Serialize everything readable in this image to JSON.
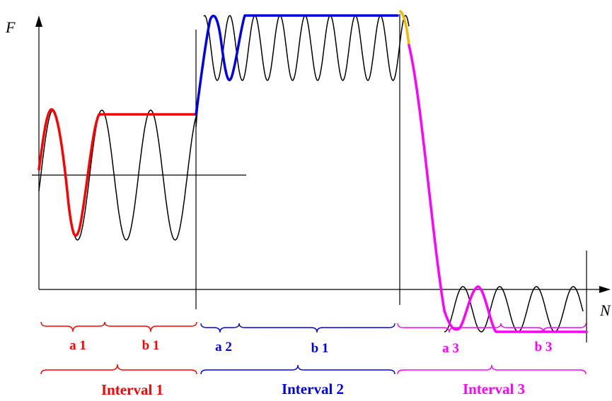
{
  "axes": {
    "y_label": "F",
    "x_label": "N"
  },
  "colors": {
    "interval1": "#ff0000",
    "interval2": "#0000ee",
    "interval3": "#ff00ff",
    "transition": "#f5b800",
    "axis": "#000000"
  },
  "braces": [
    {
      "label": "a 1",
      "interval": 1
    },
    {
      "label": "b 1",
      "interval": 1
    },
    {
      "label": "a 2",
      "interval": 2
    },
    {
      "label": "b 1",
      "interval": 2
    },
    {
      "label": "a 3",
      "interval": 3
    },
    {
      "label": "b 3",
      "interval": 3
    }
  ],
  "intervals": [
    {
      "label": "Interval 1"
    },
    {
      "label": "Interval 2"
    },
    {
      "label": "Interval 3"
    }
  ]
}
